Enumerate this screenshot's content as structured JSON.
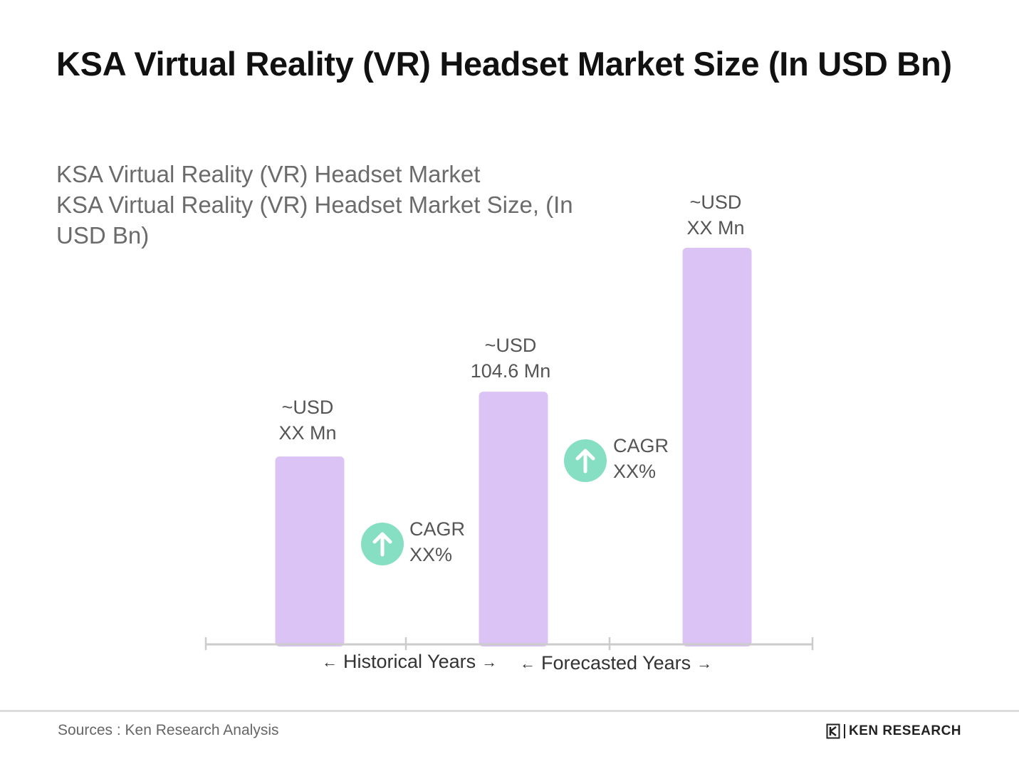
{
  "title": "KSA Virtual Reality (VR) Headset Market Size (In USD Bn)",
  "subtitle": {
    "line1": "KSA Virtual Reality (VR) Headset Market",
    "line2": "KSA Virtual Reality (VR) Headset Market Size, (In",
    "line3": "USD Bn)"
  },
  "chart_data": {
    "type": "bar",
    "categories": [
      "",
      "",
      ""
    ],
    "values": [
      52,
      70,
      110
    ],
    "value_units": "relative bar height (exact values not printed)",
    "bar_color": "#dcc3f5",
    "data_labels": [
      {
        "line1": "~USD",
        "line2": "XX Mn"
      },
      {
        "line1": "~USD",
        "line2": "104.6 Mn"
      },
      {
        "line1": "~USD",
        "line2": "XX Mn"
      }
    ],
    "cagr": [
      {
        "line1": "CAGR",
        "line2": "XX%"
      },
      {
        "line1": "CAGR",
        "line2": "XX%"
      }
    ],
    "cagr_color": "#86dfc2",
    "period_labels": [
      "Historical Years",
      "Forecasted Years"
    ],
    "axis_color": "#cccccc",
    "grid": false
  },
  "icons": {
    "cagr": "arrow-up-icon",
    "period_left": "arrow-left-icon",
    "period_right": "arrow-right-icon"
  },
  "footer": {
    "source": "Sources : Ken Research Analysis",
    "logo_text": "KEN RESEARCH"
  }
}
